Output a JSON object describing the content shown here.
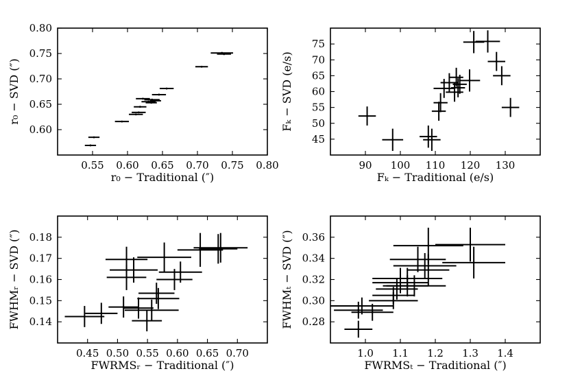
{
  "figure": {
    "title": ""
  },
  "chart_data": [
    {
      "type": "scatter",
      "panel": "top-left",
      "title": "",
      "xlabel": "r₀ − Traditional (″)",
      "ylabel": "r₀ − SVD (″)",
      "xlim": [
        0.5,
        0.8
      ],
      "ylim": [
        0.55,
        0.8
      ],
      "xticks": [
        "0.55",
        "0.60",
        "0.65",
        "0.70",
        "0.75",
        "0.80"
      ],
      "xtick_values": [
        0.55,
        0.6,
        0.65,
        0.7,
        0.75,
        0.8
      ],
      "yticks": [
        "0.60",
        "0.65",
        "0.70",
        "0.75",
        "0.80"
      ],
      "ytick_values": [
        0.6,
        0.65,
        0.7,
        0.75,
        0.8
      ],
      "grid": false,
      "points": [
        {
          "x": 0.547,
          "y": 0.569,
          "xerr": 0.008,
          "yerr": 0.001
        },
        {
          "x": 0.552,
          "y": 0.585,
          "xerr": 0.008,
          "yerr": 0.001
        },
        {
          "x": 0.592,
          "y": 0.616,
          "xerr": 0.01,
          "yerr": 0.001
        },
        {
          "x": 0.612,
          "y": 0.63,
          "xerr": 0.01,
          "yerr": 0.0015
        },
        {
          "x": 0.616,
          "y": 0.634,
          "xerr": 0.01,
          "yerr": 0.0015
        },
        {
          "x": 0.618,
          "y": 0.645,
          "xerr": 0.009,
          "yerr": 0.0015
        },
        {
          "x": 0.622,
          "y": 0.661,
          "xerr": 0.01,
          "yerr": 0.0015
        },
        {
          "x": 0.63,
          "y": 0.655,
          "xerr": 0.01,
          "yerr": 0.002
        },
        {
          "x": 0.635,
          "y": 0.659,
          "xerr": 0.011,
          "yerr": 0.002
        },
        {
          "x": 0.634,
          "y": 0.653,
          "xerr": 0.008,
          "yerr": 0.0015
        },
        {
          "x": 0.64,
          "y": 0.657,
          "xerr": 0.008,
          "yerr": 0.0015
        },
        {
          "x": 0.645,
          "y": 0.669,
          "xerr": 0.01,
          "yerr": 0.0015
        },
        {
          "x": 0.656,
          "y": 0.681,
          "xerr": 0.01,
          "yerr": 0.0015
        },
        {
          "x": 0.706,
          "y": 0.724,
          "xerr": 0.009,
          "yerr": 0.0015
        },
        {
          "x": 0.735,
          "y": 0.751,
          "xerr": 0.016,
          "yerr": 0.002
        },
        {
          "x": 0.738,
          "y": 0.749,
          "xerr": 0.01,
          "yerr": 0.002
        }
      ]
    },
    {
      "type": "scatter",
      "panel": "top-right",
      "title": "",
      "xlabel": "Fₖ − Traditional (e/s)",
      "ylabel": "Fₖ − SVD (e/s)",
      "xlim": [
        80,
        140
      ],
      "ylim": [
        40,
        80
      ],
      "xticks": [
        "90",
        "100",
        "110",
        "120",
        "130"
      ],
      "xtick_values": [
        90,
        100,
        110,
        120,
        130
      ],
      "yticks": [
        "45",
        "50",
        "55",
        "60",
        "65",
        "70",
        "75"
      ],
      "ytick_values": [
        45,
        50,
        55,
        60,
        65,
        70,
        75
      ],
      "grid": false,
      "points": [
        {
          "x": 90.5,
          "y": 52.3,
          "xerr": 2.5,
          "yerr": 3.0
        },
        {
          "x": 97.8,
          "y": 44.8,
          "xerr": 3.0,
          "yerr": 3.5
        },
        {
          "x": 108.0,
          "y": 45.8,
          "xerr": 2.5,
          "yerr": 3.5
        },
        {
          "x": 109.0,
          "y": 44.8,
          "xerr": 2.5,
          "yerr": 3.5
        },
        {
          "x": 111.0,
          "y": 53.8,
          "xerr": 2.0,
          "yerr": 3.0
        },
        {
          "x": 111.5,
          "y": 56.5,
          "xerr": 2.0,
          "yerr": 3.0
        },
        {
          "x": 112.5,
          "y": 61.0,
          "xerr": 3.0,
          "yerr": 3.0
        },
        {
          "x": 114.0,
          "y": 62.8,
          "xerr": 2.5,
          "yerr": 3.0
        },
        {
          "x": 115.5,
          "y": 59.8,
          "xerr": 2.5,
          "yerr": 3.0
        },
        {
          "x": 116.5,
          "y": 61.2,
          "xerr": 2.0,
          "yerr": 3.0
        },
        {
          "x": 117.0,
          "y": 62.3,
          "xerr": 2.0,
          "yerr": 3.0
        },
        {
          "x": 116.0,
          "y": 64.5,
          "xerr": 2.0,
          "yerr": 3.0
        },
        {
          "x": 119.8,
          "y": 63.5,
          "xerr": 3.0,
          "yerr": 3.5
        },
        {
          "x": 121.0,
          "y": 75.6,
          "xerr": 3.0,
          "yerr": 3.5
        },
        {
          "x": 125.0,
          "y": 75.8,
          "xerr": 3.5,
          "yerr": 3.5
        },
        {
          "x": 127.5,
          "y": 69.5,
          "xerr": 2.5,
          "yerr": 3.0
        },
        {
          "x": 129.0,
          "y": 65.0,
          "xerr": 2.5,
          "yerr": 3.0
        },
        {
          "x": 131.5,
          "y": 55.0,
          "xerr": 2.5,
          "yerr": 3.0
        }
      ]
    },
    {
      "type": "scatter",
      "panel": "bottom-left",
      "title": "",
      "xlabel": "FWRMSᵣ − Traditional (″)",
      "ylabel": "FWHMᵣ − SVD (″)",
      "xlim": [
        0.4,
        0.75
      ],
      "ylim": [
        0.13,
        0.19
      ],
      "xticks": [
        "0.45",
        "0.50",
        "0.55",
        "0.60",
        "0.65",
        "0.70"
      ],
      "xtick_values": [
        0.45,
        0.5,
        0.55,
        0.6,
        0.65,
        0.7
      ],
      "yticks": [
        "0.14",
        "0.15",
        "0.16",
        "0.17",
        "0.18"
      ],
      "ytick_values": [
        0.14,
        0.15,
        0.16,
        0.17,
        0.18
      ],
      "grid": false,
      "points": [
        {
          "x": 0.445,
          "y": 0.1425,
          "xerr": 0.033,
          "yerr": 0.005
        },
        {
          "x": 0.473,
          "y": 0.144,
          "xerr": 0.027,
          "yerr": 0.005
        },
        {
          "x": 0.51,
          "y": 0.147,
          "xerr": 0.025,
          "yerr": 0.005
        },
        {
          "x": 0.535,
          "y": 0.1465,
          "xerr": 0.025,
          "yerr": 0.005
        },
        {
          "x": 0.515,
          "y": 0.161,
          "xerr": 0.033,
          "yerr": 0.006
        },
        {
          "x": 0.515,
          "y": 0.1695,
          "xerr": 0.035,
          "yerr": 0.006
        },
        {
          "x": 0.527,
          "y": 0.1645,
          "xerr": 0.04,
          "yerr": 0.006
        },
        {
          "x": 0.549,
          "y": 0.1405,
          "xerr": 0.025,
          "yerr": 0.005
        },
        {
          "x": 0.557,
          "y": 0.1455,
          "xerr": 0.045,
          "yerr": 0.005
        },
        {
          "x": 0.568,
          "y": 0.151,
          "xerr": 0.035,
          "yerr": 0.005
        },
        {
          "x": 0.565,
          "y": 0.1535,
          "xerr": 0.03,
          "yerr": 0.005
        },
        {
          "x": 0.578,
          "y": 0.1705,
          "xerr": 0.045,
          "yerr": 0.007
        },
        {
          "x": 0.595,
          "y": 0.16,
          "xerr": 0.03,
          "yerr": 0.005
        },
        {
          "x": 0.605,
          "y": 0.1635,
          "xerr": 0.036,
          "yerr": 0.005
        },
        {
          "x": 0.638,
          "y": 0.174,
          "xerr": 0.038,
          "yerr": 0.008
        },
        {
          "x": 0.668,
          "y": 0.1745,
          "xerr": 0.032,
          "yerr": 0.007
        },
        {
          "x": 0.672,
          "y": 0.175,
          "xerr": 0.045,
          "yerr": 0.007
        }
      ]
    },
    {
      "type": "scatter",
      "panel": "bottom-right",
      "title": "",
      "xlabel": "FWRMSₜ − Traditional (″)",
      "ylabel": "FWHMₜ − SVD (″)",
      "xlim": [
        0.9,
        1.5
      ],
      "ylim": [
        0.26,
        0.38
      ],
      "xticks": [
        "1.0",
        "1.1",
        "1.2",
        "1.3",
        "1.4"
      ],
      "xtick_values": [
        1.0,
        1.1,
        1.2,
        1.3,
        1.4
      ],
      "yticks": [
        "0.28",
        "0.30",
        "0.32",
        "0.34",
        "0.36"
      ],
      "ytick_values": [
        0.28,
        0.3,
        0.32,
        0.34,
        0.36
      ],
      "grid": false,
      "points": [
        {
          "x": 0.98,
          "y": 0.273,
          "xerr": 0.04,
          "yerr": 0.008
        },
        {
          "x": 0.98,
          "y": 0.291,
          "xerr": 0.07,
          "yerr": 0.008
        },
        {
          "x": 0.99,
          "y": 0.295,
          "xerr": 0.09,
          "yerr": 0.008
        },
        {
          "x": 1.02,
          "y": 0.289,
          "xerr": 0.06,
          "yerr": 0.008
        },
        {
          "x": 1.08,
          "y": 0.3,
          "xerr": 0.07,
          "yerr": 0.008
        },
        {
          "x": 1.08,
          "y": 0.305,
          "xerr": 0.06,
          "yerr": 0.008
        },
        {
          "x": 1.09,
          "y": 0.311,
          "xerr": 0.06,
          "yerr": 0.01
        },
        {
          "x": 1.1,
          "y": 0.321,
          "xerr": 0.06,
          "yerr": 0.01
        },
        {
          "x": 1.1,
          "y": 0.317,
          "xerr": 0.08,
          "yerr": 0.01
        },
        {
          "x": 1.12,
          "y": 0.314,
          "xerr": 0.06,
          "yerr": 0.01
        },
        {
          "x": 1.12,
          "y": 0.321,
          "xerr": 0.1,
          "yerr": 0.01
        },
        {
          "x": 1.14,
          "y": 0.314,
          "xerr": 0.09,
          "yerr": 0.01
        },
        {
          "x": 1.15,
          "y": 0.339,
          "xerr": 0.08,
          "yerr": 0.012
        },
        {
          "x": 1.17,
          "y": 0.333,
          "xerr": 0.09,
          "yerr": 0.012
        },
        {
          "x": 1.18,
          "y": 0.352,
          "xerr": 0.1,
          "yerr": 0.017
        },
        {
          "x": 1.18,
          "y": 0.329,
          "xerr": 0.06,
          "yerr": 0.015
        },
        {
          "x": 1.3,
          "y": 0.353,
          "xerr": 0.1,
          "yerr": 0.016
        },
        {
          "x": 1.31,
          "y": 0.336,
          "xerr": 0.09,
          "yerr": 0.015
        }
      ]
    }
  ]
}
